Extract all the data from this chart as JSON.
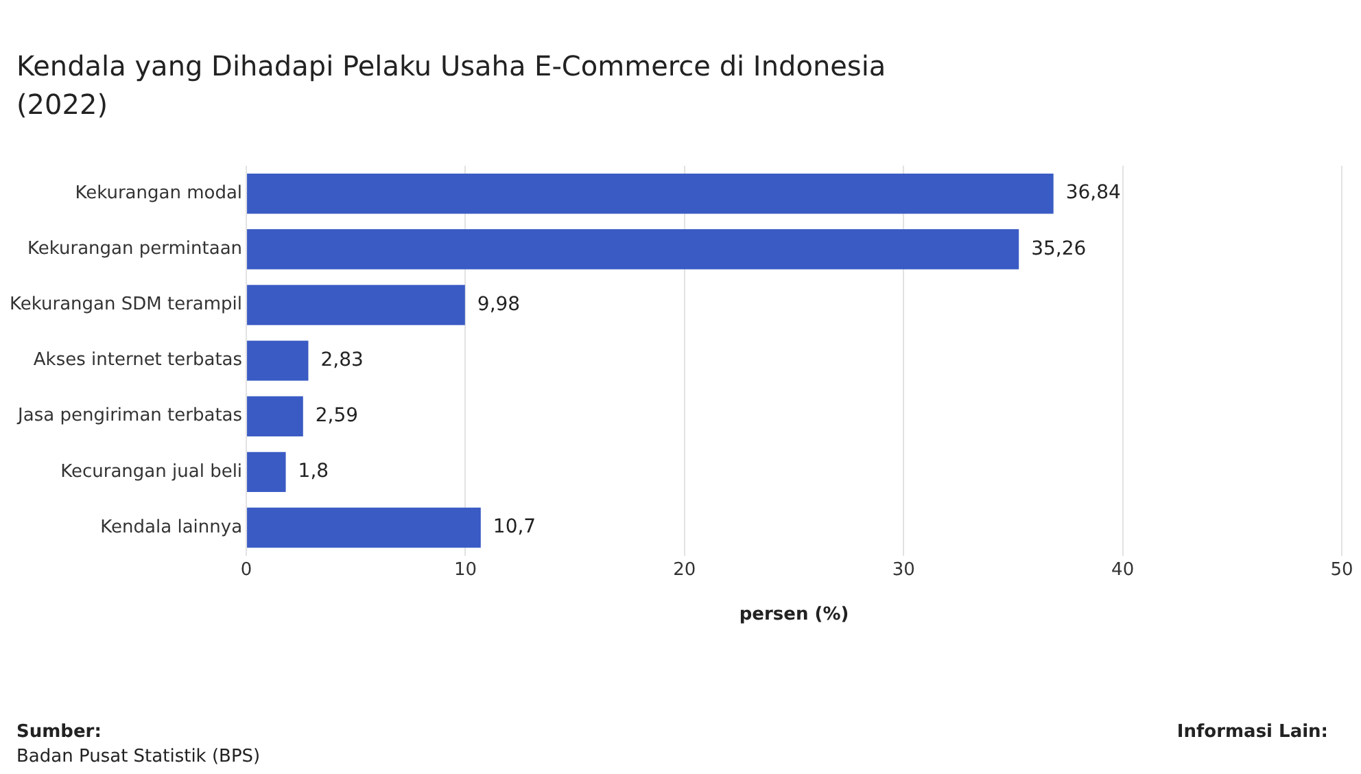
{
  "chart_data": {
    "type": "bar",
    "orientation": "horizontal",
    "title": "Kendala yang Dihadapi Pelaku Usaha E-Commerce di Indonesia (2022)",
    "xlabel": "persen (%)",
    "categories": [
      "Kekurangan modal",
      "Kekurangan permintaan",
      "Kekurangan SDM terampil",
      "Akses internet terbatas",
      "Jasa pengiriman terbatas",
      "Kecurangan jual beli",
      "Kendala lainnya"
    ],
    "values": [
      36.84,
      35.26,
      9.98,
      2.83,
      2.59,
      1.8,
      10.7
    ],
    "value_labels": [
      "36,84",
      "35,26",
      "9,98",
      "2,83",
      "2,59",
      "1,8",
      "10,7"
    ],
    "color": "#3a5bc4",
    "xlim": [
      0,
      50
    ],
    "xticks": [
      0,
      10,
      20,
      30,
      40,
      50
    ],
    "grid": "x",
    "legend": false,
    "annotations": [
      "Sumber:",
      "Badan Pusat Statistik (BPS)",
      "Informasi Lain:"
    ]
  }
}
